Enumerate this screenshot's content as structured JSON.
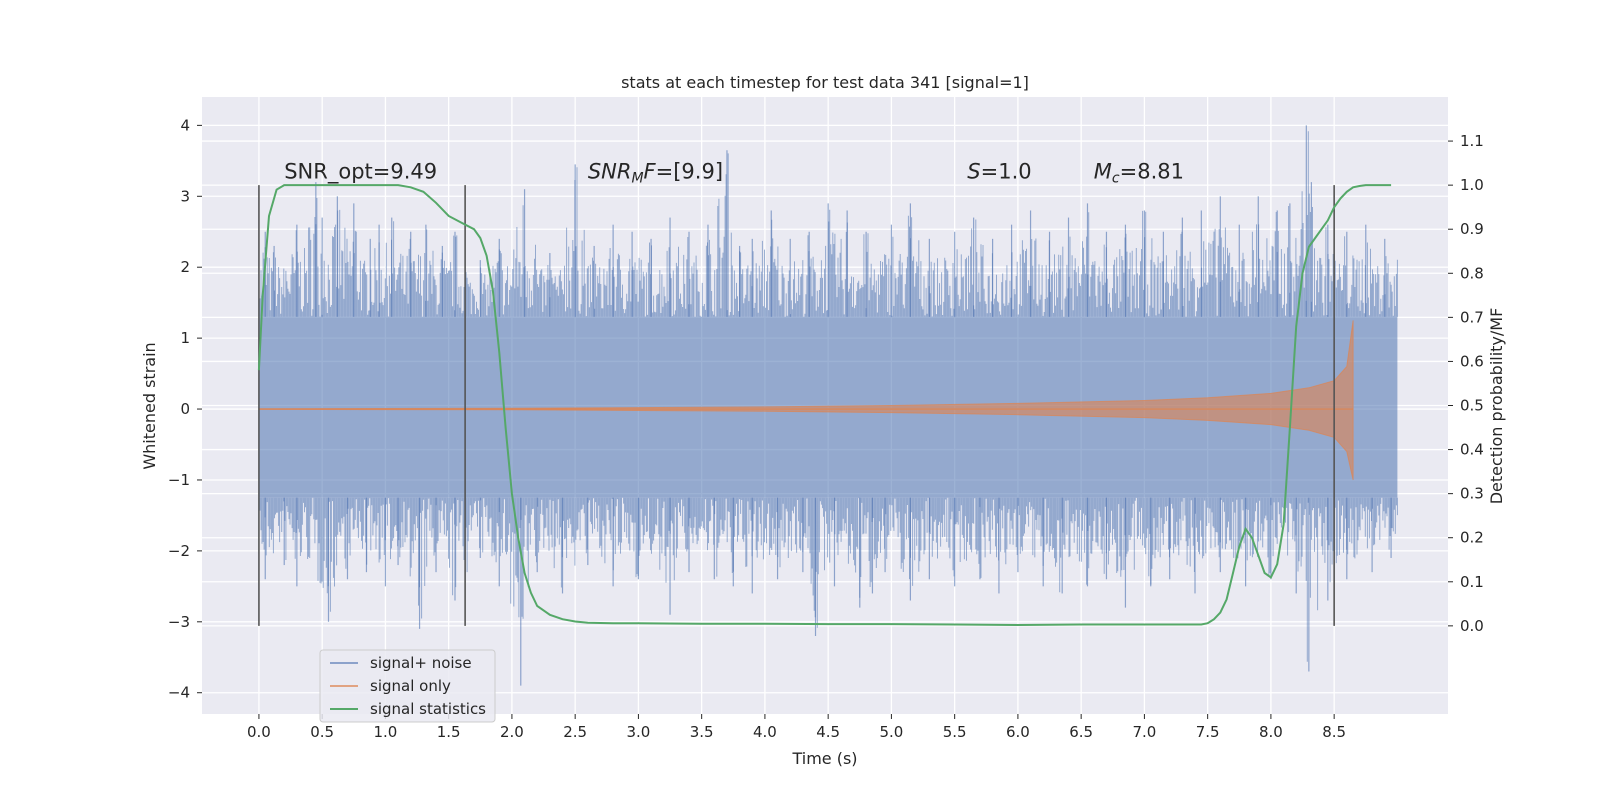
{
  "chart_data": {
    "type": "line",
    "title": "stats at each timestep for test data 341 [signal=1]",
    "xlabel": "Time (s)",
    "ylabel": "Whitened strain",
    "y2label": "Detection probability/MF",
    "xlim": [
      -0.45,
      9.4
    ],
    "ylim": [
      -4.3,
      4.4
    ],
    "y2lim": [
      -0.2,
      1.2
    ],
    "x_ticks": [
      0.0,
      0.5,
      1.0,
      1.5,
      2.0,
      2.5,
      3.0,
      3.5,
      4.0,
      4.5,
      5.0,
      5.5,
      6.0,
      6.5,
      7.0,
      7.5,
      8.0,
      8.5
    ],
    "x_tick_labels": [
      "0.0",
      "0.5",
      "1.0",
      "1.5",
      "2.0",
      "2.5",
      "3.0",
      "3.5",
      "4.0",
      "4.5",
      "5.0",
      "5.5",
      "6.0",
      "6.5",
      "7.0",
      "7.5",
      "8.0",
      "8.5"
    ],
    "y_ticks": [
      4,
      3,
      2,
      1,
      0,
      -1,
      -2,
      -3,
      -4
    ],
    "y_tick_labels": [
      "4",
      "3",
      "2",
      "1",
      "0",
      "−1",
      "−2",
      "−3",
      "−4"
    ],
    "y2_ticks": [
      1.1,
      1.0,
      0.9,
      0.8,
      0.7,
      0.6,
      0.5,
      0.4,
      0.3,
      0.2,
      0.1,
      0.0
    ],
    "y2_tick_labels": [
      "1.1",
      "1.0",
      "0.9",
      "0.8",
      "0.7",
      "0.6",
      "0.5",
      "0.4",
      "0.3",
      "0.2",
      "0.1",
      "0.0"
    ],
    "grid": true,
    "legend_placement": "lower-left",
    "colors": {
      "background": "#eaeaf2",
      "grid": "#ffffff",
      "noise": "#4c72b0",
      "signal": "#dd8452",
      "stats": "#55a868",
      "vline": "#555555"
    },
    "annotations": [
      {
        "text": "SNR_opt=9.49",
        "x": 0.2,
        "y": 3.25,
        "parts": [
          {
            "t": "SNR_opt=9.49",
            "style": "normal"
          }
        ]
      },
      {
        "text": "SNR_MF=[9.9]",
        "x": 2.6,
        "y": 3.25,
        "parts": [
          {
            "t": "SNR",
            "style": "italic"
          },
          {
            "t": "M",
            "style": "italic-sub"
          },
          {
            "t": "F",
            "style": "italic"
          },
          {
            "t": "=[9.9]",
            "style": "normal"
          }
        ]
      },
      {
        "text": "S=1.0",
        "x": 5.6,
        "y": 3.25,
        "parts": [
          {
            "t": "S",
            "style": "italic"
          },
          {
            "t": "=1.0",
            "style": "normal"
          }
        ]
      },
      {
        "text": "M_c=8.81",
        "x": 6.6,
        "y": 3.25,
        "parts": [
          {
            "t": "M",
            "style": "italic"
          },
          {
            "t": "c",
            "style": "italic-sub"
          },
          {
            "t": "=8.81",
            "style": "normal"
          }
        ]
      }
    ],
    "vertical_lines": {
      "x": [
        0.0,
        1.63,
        8.5
      ],
      "y2_range": [
        0.0,
        1.0
      ]
    },
    "series": [
      {
        "name": "signal+ noise",
        "kind": "noise-envelope",
        "x_range": [
          0.0,
          9.0
        ],
        "dense_band": [
          -1.25,
          1.3
        ],
        "spikes_up": [
          [
            0.05,
            2.5
          ],
          [
            0.12,
            2.3
          ],
          [
            0.3,
            2.6
          ],
          [
            0.45,
            3.2
          ],
          [
            0.5,
            2.7
          ],
          [
            0.62,
            3.0
          ],
          [
            0.75,
            2.9
          ],
          [
            0.88,
            2.4
          ],
          [
            0.95,
            2.6
          ],
          [
            1.05,
            2.7
          ],
          [
            1.2,
            2.5
          ],
          [
            1.32,
            2.6
          ],
          [
            1.45,
            2.3
          ],
          [
            1.55,
            2.5
          ],
          [
            1.75,
            2.1
          ],
          [
            1.9,
            2.4
          ],
          [
            2.1,
            3.1
          ],
          [
            2.3,
            2.2
          ],
          [
            2.5,
            3.45
          ],
          [
            2.65,
            2.3
          ],
          [
            2.8,
            2.6
          ],
          [
            2.95,
            2.5
          ],
          [
            3.1,
            2.4
          ],
          [
            3.25,
            2.7
          ],
          [
            3.4,
            2.5
          ],
          [
            3.55,
            2.6
          ],
          [
            3.7,
            3.65
          ],
          [
            3.8,
            2.3
          ],
          [
            3.9,
            2.4
          ],
          [
            4.05,
            2.8
          ],
          [
            4.2,
            2.4
          ],
          [
            4.35,
            2.5
          ],
          [
            4.5,
            2.9
          ],
          [
            4.65,
            2.8
          ],
          [
            4.8,
            2.5
          ],
          [
            5.0,
            2.6
          ],
          [
            5.15,
            2.9
          ],
          [
            5.3,
            2.4
          ],
          [
            5.5,
            2.5
          ],
          [
            5.65,
            2.7
          ],
          [
            5.8,
            2.4
          ],
          [
            5.95,
            2.6
          ],
          [
            6.1,
            2.8
          ],
          [
            6.25,
            2.5
          ],
          [
            6.4,
            2.7
          ],
          [
            6.55,
            2.9
          ],
          [
            6.7,
            2.5
          ],
          [
            6.85,
            2.6
          ],
          [
            7.0,
            2.8
          ],
          [
            7.15,
            2.5
          ],
          [
            7.3,
            2.7
          ],
          [
            7.45,
            2.8
          ],
          [
            7.6,
            3.0
          ],
          [
            7.75,
            2.6
          ],
          [
            7.9,
            3.0
          ],
          [
            8.05,
            2.8
          ],
          [
            8.15,
            2.9
          ],
          [
            8.28,
            4.0
          ],
          [
            8.32,
            3.2
          ],
          [
            8.45,
            2.6
          ],
          [
            8.6,
            2.5
          ],
          [
            8.75,
            2.6
          ],
          [
            8.9,
            2.4
          ]
        ],
        "spikes_down": [
          [
            0.05,
            -2.4
          ],
          [
            0.2,
            -2.2
          ],
          [
            0.3,
            -2.5
          ],
          [
            0.55,
            -3.0
          ],
          [
            0.7,
            -2.4
          ],
          [
            0.85,
            -2.3
          ],
          [
            1.0,
            -2.5
          ],
          [
            1.1,
            -2.2
          ],
          [
            1.27,
            -3.1
          ],
          [
            1.4,
            -2.3
          ],
          [
            1.55,
            -2.7
          ],
          [
            1.75,
            -2.1
          ],
          [
            1.9,
            -2.5
          ],
          [
            2.07,
            -3.9
          ],
          [
            2.2,
            -2.3
          ],
          [
            2.4,
            -2.6
          ],
          [
            2.6,
            -2.2
          ],
          [
            2.8,
            -2.5
          ],
          [
            3.0,
            -2.4
          ],
          [
            3.25,
            -2.9
          ],
          [
            3.4,
            -2.3
          ],
          [
            3.6,
            -2.4
          ],
          [
            3.75,
            -2.5
          ],
          [
            3.9,
            -2.6
          ],
          [
            4.1,
            -2.4
          ],
          [
            4.3,
            -2.3
          ],
          [
            4.4,
            -3.2
          ],
          [
            4.55,
            -2.5
          ],
          [
            4.75,
            -2.8
          ],
          [
            4.85,
            -2.6
          ],
          [
            4.95,
            -2.3
          ],
          [
            5.15,
            -2.7
          ],
          [
            5.3,
            -2.4
          ],
          [
            5.5,
            -2.5
          ],
          [
            5.7,
            -2.4
          ],
          [
            5.85,
            -2.6
          ],
          [
            6.0,
            -2.3
          ],
          [
            6.2,
            -2.5
          ],
          [
            6.35,
            -2.6
          ],
          [
            6.55,
            -2.5
          ],
          [
            6.7,
            -2.4
          ],
          [
            6.85,
            -2.8
          ],
          [
            7.05,
            -2.5
          ],
          [
            7.2,
            -2.4
          ],
          [
            7.4,
            -2.6
          ],
          [
            7.6,
            -2.3
          ],
          [
            7.8,
            -2.5
          ],
          [
            8.0,
            -2.4
          ],
          [
            8.2,
            -2.6
          ],
          [
            8.3,
            -3.7
          ],
          [
            8.45,
            -2.7
          ],
          [
            8.6,
            -2.4
          ],
          [
            8.8,
            -2.3
          ],
          [
            8.95,
            -2.1
          ]
        ]
      },
      {
        "name": "signal only",
        "kind": "chirp-envelope",
        "x_range": [
          0.0,
          8.65
        ],
        "amplitude": [
          [
            0.0,
            0.005
          ],
          [
            2.0,
            0.01
          ],
          [
            4.0,
            0.03
          ],
          [
            5.0,
            0.05
          ],
          [
            6.0,
            0.08
          ],
          [
            7.0,
            0.12
          ],
          [
            7.5,
            0.16
          ],
          [
            8.0,
            0.22
          ],
          [
            8.3,
            0.3
          ],
          [
            8.5,
            0.4
          ],
          [
            8.6,
            0.6
          ],
          [
            8.65,
            1.25
          ]
        ],
        "min_tip": -1.0
      },
      {
        "name": "signal statistics",
        "kind": "line",
        "axis": "y2",
        "x": [
          0.0,
          0.03,
          0.08,
          0.14,
          0.2,
          0.3,
          0.5,
          0.8,
          1.0,
          1.1,
          1.2,
          1.3,
          1.4,
          1.5,
          1.6,
          1.7,
          1.75,
          1.8,
          1.85,
          1.9,
          1.95,
          2.0,
          2.05,
          2.1,
          2.15,
          2.2,
          2.3,
          2.4,
          2.5,
          2.6,
          2.8,
          3.0,
          3.5,
          4.0,
          4.5,
          5.0,
          5.5,
          6.0,
          6.5,
          7.0,
          7.3,
          7.45,
          7.5,
          7.55,
          7.6,
          7.65,
          7.7,
          7.75,
          7.8,
          7.85,
          7.9,
          7.95,
          8.0,
          8.05,
          8.1,
          8.15,
          8.2,
          8.25,
          8.3,
          8.35,
          8.4,
          8.45,
          8.5,
          8.55,
          8.6,
          8.65,
          8.7,
          8.75,
          8.8,
          8.85,
          8.9,
          8.95
        ],
        "y": [
          0.58,
          0.75,
          0.93,
          0.99,
          1.0,
          1.0,
          1.0,
          1.0,
          1.0,
          1.0,
          0.995,
          0.985,
          0.96,
          0.93,
          0.915,
          0.9,
          0.88,
          0.84,
          0.76,
          0.62,
          0.45,
          0.3,
          0.2,
          0.12,
          0.075,
          0.045,
          0.025,
          0.015,
          0.01,
          0.007,
          0.006,
          0.006,
          0.005,
          0.005,
          0.004,
          0.004,
          0.003,
          0.002,
          0.003,
          0.003,
          0.003,
          0.003,
          0.006,
          0.015,
          0.03,
          0.06,
          0.12,
          0.18,
          0.22,
          0.2,
          0.16,
          0.12,
          0.11,
          0.14,
          0.23,
          0.45,
          0.68,
          0.8,
          0.86,
          0.88,
          0.9,
          0.92,
          0.95,
          0.97,
          0.985,
          0.995,
          0.998,
          1.0,
          1.0,
          1.0,
          1.0,
          1.0
        ]
      }
    ]
  }
}
